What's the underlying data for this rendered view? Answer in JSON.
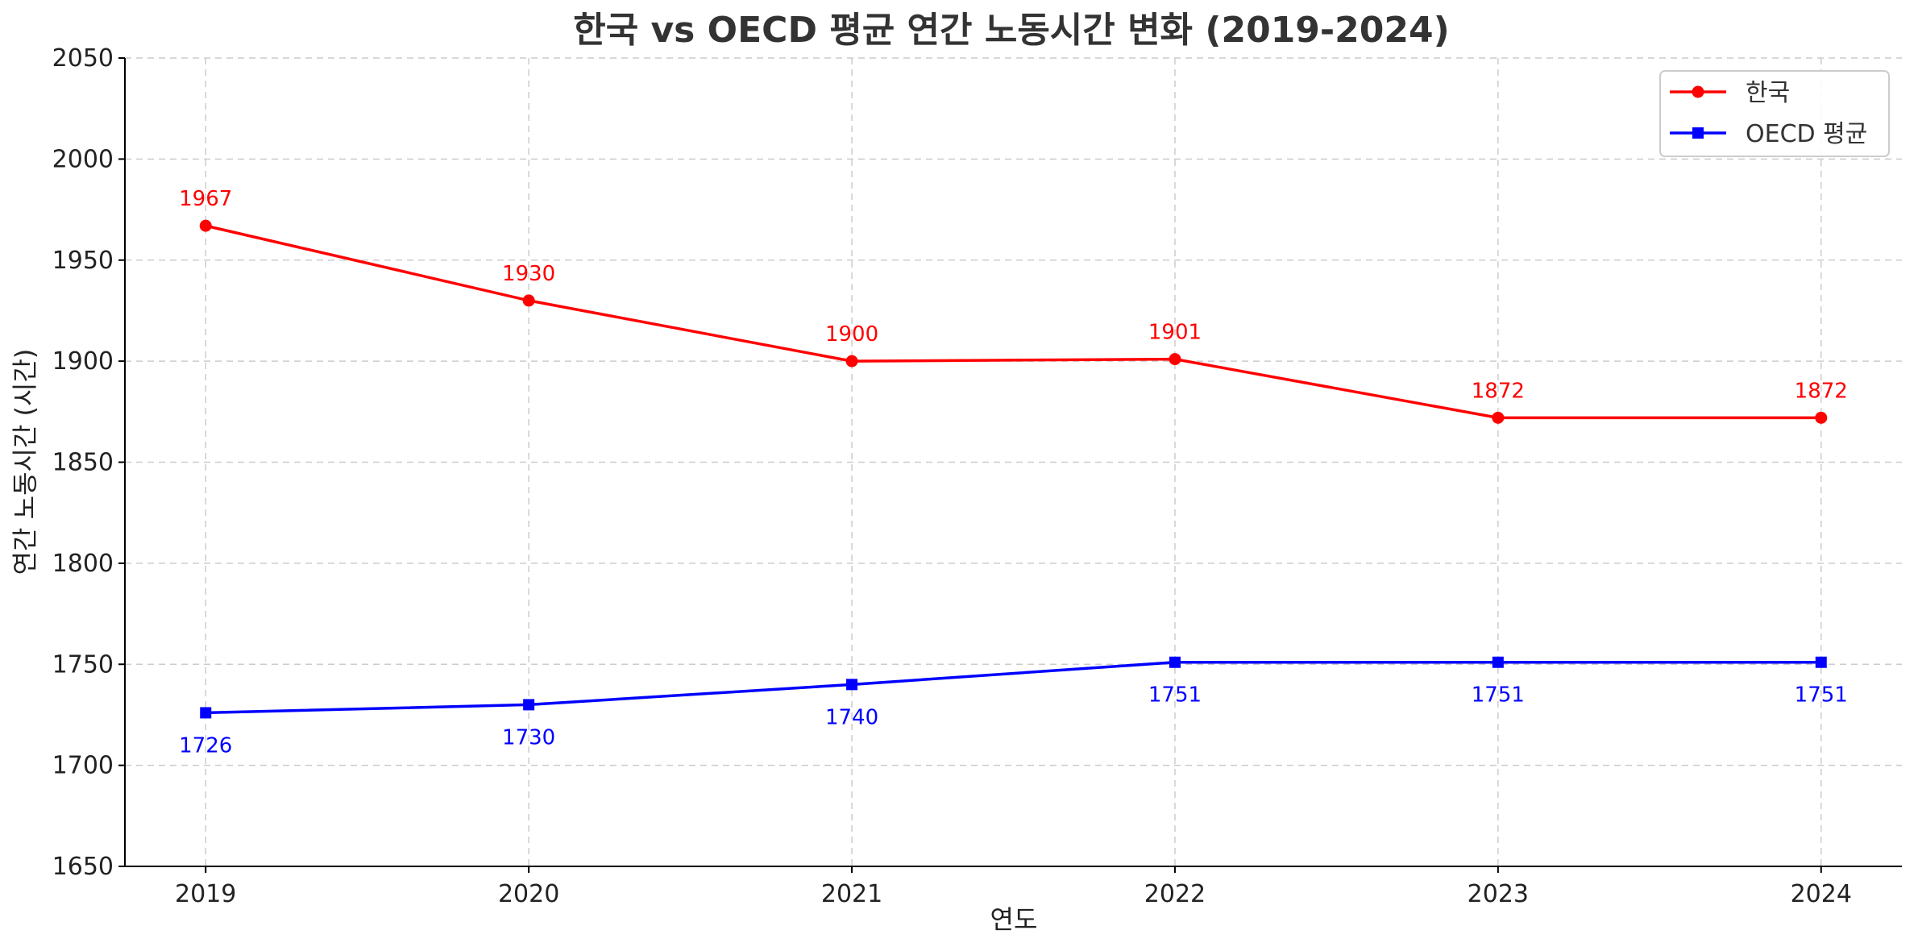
{
  "chart_data": {
    "type": "line",
    "title": "한국 vs OECD 평균 연간 노동시간 변화 (2019-2024)",
    "xlabel": "연도",
    "ylabel": "연간 노동시간 (시간)",
    "x": [
      2019,
      2020,
      2021,
      2022,
      2023,
      2024
    ],
    "ylim": [
      1650,
      2050
    ],
    "yticks": [
      1650,
      1700,
      1750,
      1800,
      1850,
      1900,
      1950,
      2000,
      2050
    ],
    "grid": true,
    "legend_position": "top-right",
    "series": [
      {
        "name": "한국",
        "values": [
          1967,
          1930,
          1900,
          1901,
          1872,
          1872
        ],
        "color": "#ff0000",
        "marker": "circle",
        "label_position": "above"
      },
      {
        "name": "OECD 평균",
        "values": [
          1726,
          1730,
          1740,
          1751,
          1751,
          1751
        ],
        "color": "#0000ff",
        "marker": "square",
        "label_position": "below"
      }
    ]
  }
}
